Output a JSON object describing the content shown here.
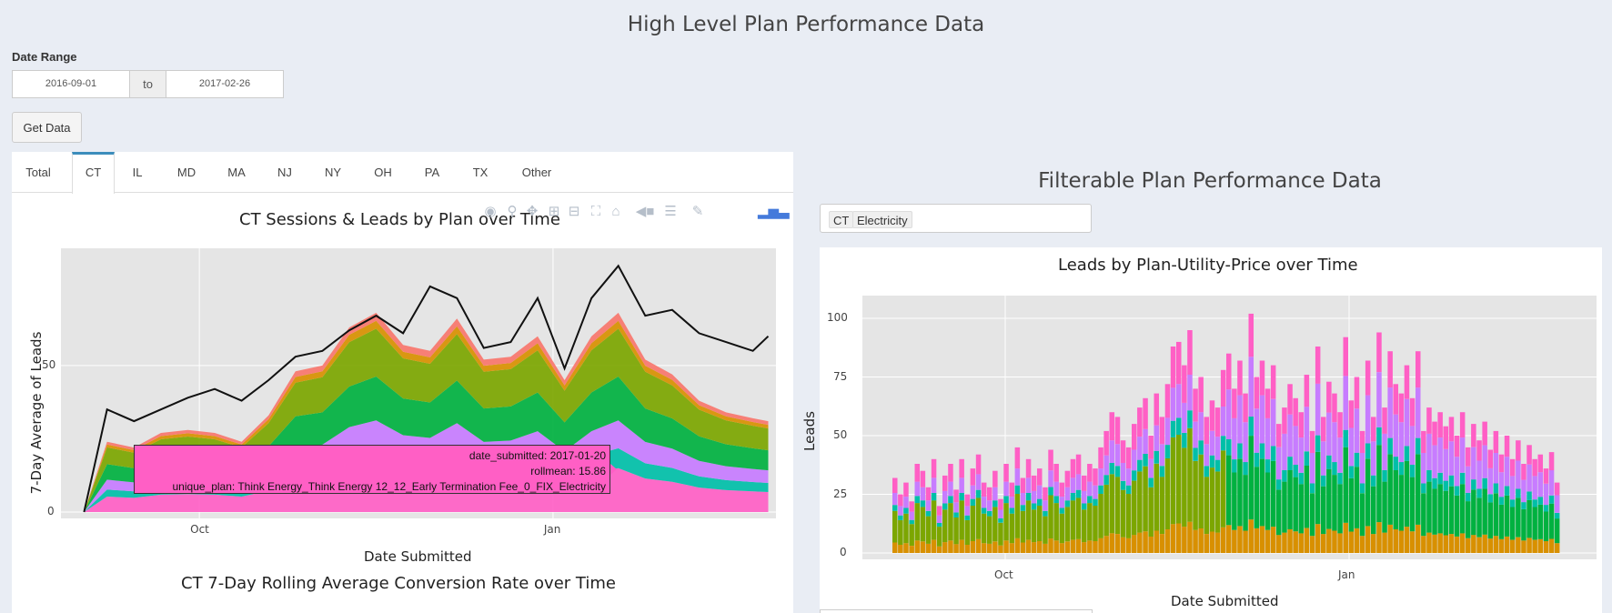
{
  "page": {
    "title": "High Level Plan Performance Data",
    "date_range_label": "Date Range",
    "date_start": "2016-09-01",
    "date_sep": "to",
    "date_end": "2017-02-26",
    "get_data_label": "Get Data"
  },
  "tabs": [
    {
      "label": "Total",
      "active": false
    },
    {
      "label": "CT",
      "active": true
    },
    {
      "label": "IL",
      "active": false
    },
    {
      "label": "MD",
      "active": false
    },
    {
      "label": "MA",
      "active": false
    },
    {
      "label": "NJ",
      "active": false
    },
    {
      "label": "NY",
      "active": false
    },
    {
      "label": "OH",
      "active": false
    },
    {
      "label": "PA",
      "active": false
    },
    {
      "label": "TX",
      "active": false
    },
    {
      "label": "Other",
      "active": false
    }
  ],
  "modebar_icons": [
    "camera-icon",
    "zoom-icon",
    "pan-icon",
    "zoom-in-icon",
    "zoom-out-icon",
    "autoscale-icon",
    "home-icon",
    "hover-closest-icon",
    "hover-compare-icon",
    "edit-icon",
    "plotly-logo-icon"
  ],
  "colors": {
    "accent": "#3c8dbc",
    "plot_bg": "#e5e5e5",
    "pink": "#ff5fc5",
    "green": "#00b140",
    "olive": "#7ca600",
    "teal": "#00bfa8",
    "purple": "#c77cff",
    "orange": "#d89000",
    "red": "#f8766d"
  },
  "left_chart": {
    "title": "CT Sessions & Leads by Plan over Time",
    "ylabel": "7-Day Average of Leads",
    "xlabel": "Date Submitted",
    "next_title": "CT 7-Day Rolling Average Conversion Rate over Time",
    "y_ticks": [
      "0",
      "50"
    ],
    "x_ticks": [
      "Oct",
      "Jan"
    ],
    "tooltip": {
      "line1": "date_submitted: 2017-01-20",
      "line2": "rollmean: 15.86",
      "line3": "unique_plan: Think Energy_Think Energy 12_12_Early Termination Fee_0_FIX_Electricity"
    }
  },
  "right_section": {
    "title": "Filterable Plan Performance Data",
    "filter_tags": [
      "CT",
      "Electricity"
    ]
  },
  "chart_data": [
    {
      "type": "area",
      "title": "CT Sessions & Leads by Plan over Time",
      "xlabel": "Date Submitted",
      "ylabel": "7-Day Average of Leads",
      "x_ticks": [
        "Oct",
        "Jan"
      ],
      "ylim": [
        0,
        90
      ],
      "x": [
        "2016-09-01",
        "2016-09-07",
        "2016-09-14",
        "2016-09-21",
        "2016-09-28",
        "2016-10-05",
        "2016-10-12",
        "2016-10-19",
        "2016-10-26",
        "2016-11-02",
        "2016-11-09",
        "2016-11-16",
        "2016-11-23",
        "2016-11-30",
        "2016-12-07",
        "2016-12-14",
        "2016-12-21",
        "2016-12-28",
        "2017-01-04",
        "2017-01-11",
        "2017-01-18",
        "2017-01-25",
        "2017-02-01",
        "2017-02-08",
        "2017-02-15",
        "2017-02-22",
        "2017-02-26"
      ],
      "series": [
        {
          "values": [
            0,
            35,
            31,
            35,
            39,
            42,
            38,
            45,
            53,
            55,
            62,
            67,
            61,
            77,
            73,
            56,
            58,
            73,
            49,
            73,
            84,
            67,
            69,
            61,
            58,
            55,
            60
          ]
        }
      ],
      "stack_total": [
        0,
        24,
        22,
        27,
        28,
        27,
        24,
        33,
        48,
        50,
        63,
        68,
        57,
        55,
        66,
        52,
        53,
        60,
        45,
        60,
        68,
        52,
        47,
        38,
        34,
        32,
        31
      ]
    },
    {
      "type": "bar",
      "title": "Leads by Plan-Utility-Price over Time",
      "xlabel": "Date Submitted",
      "ylabel": "Leads",
      "x_ticks": [
        "Oct",
        "Jan"
      ],
      "y_ticks": [
        "0",
        "25",
        "50",
        "75",
        "100"
      ],
      "ylim": [
        0,
        107
      ],
      "values": [
        32,
        25,
        30,
        22,
        38,
        35,
        28,
        40,
        20,
        33,
        38,
        27,
        40,
        25,
        36,
        42,
        30,
        28,
        35,
        23,
        38,
        30,
        45,
        32,
        40,
        33,
        36,
        28,
        44,
        38,
        30,
        35,
        40,
        42,
        33,
        38,
        36,
        45,
        52,
        60,
        58,
        48,
        45,
        55,
        62,
        66,
        50,
        68,
        58,
        72,
        88,
        90,
        80,
        95,
        70,
        75,
        58,
        65,
        62,
        78,
        85,
        70,
        82,
        68,
        102,
        75,
        82,
        70,
        80,
        55,
        62,
        72,
        66,
        60,
        76,
        52,
        88,
        58,
        73,
        68,
        60,
        92,
        65,
        75,
        52,
        82,
        58,
        94,
        62,
        86,
        72,
        68,
        80,
        66,
        86,
        52,
        62,
        56,
        60,
        54,
        58,
        50,
        60,
        45,
        55,
        48,
        56,
        44,
        52,
        42,
        50,
        40,
        48,
        38,
        46,
        40,
        42,
        36,
        43,
        30
      ]
    }
  ]
}
